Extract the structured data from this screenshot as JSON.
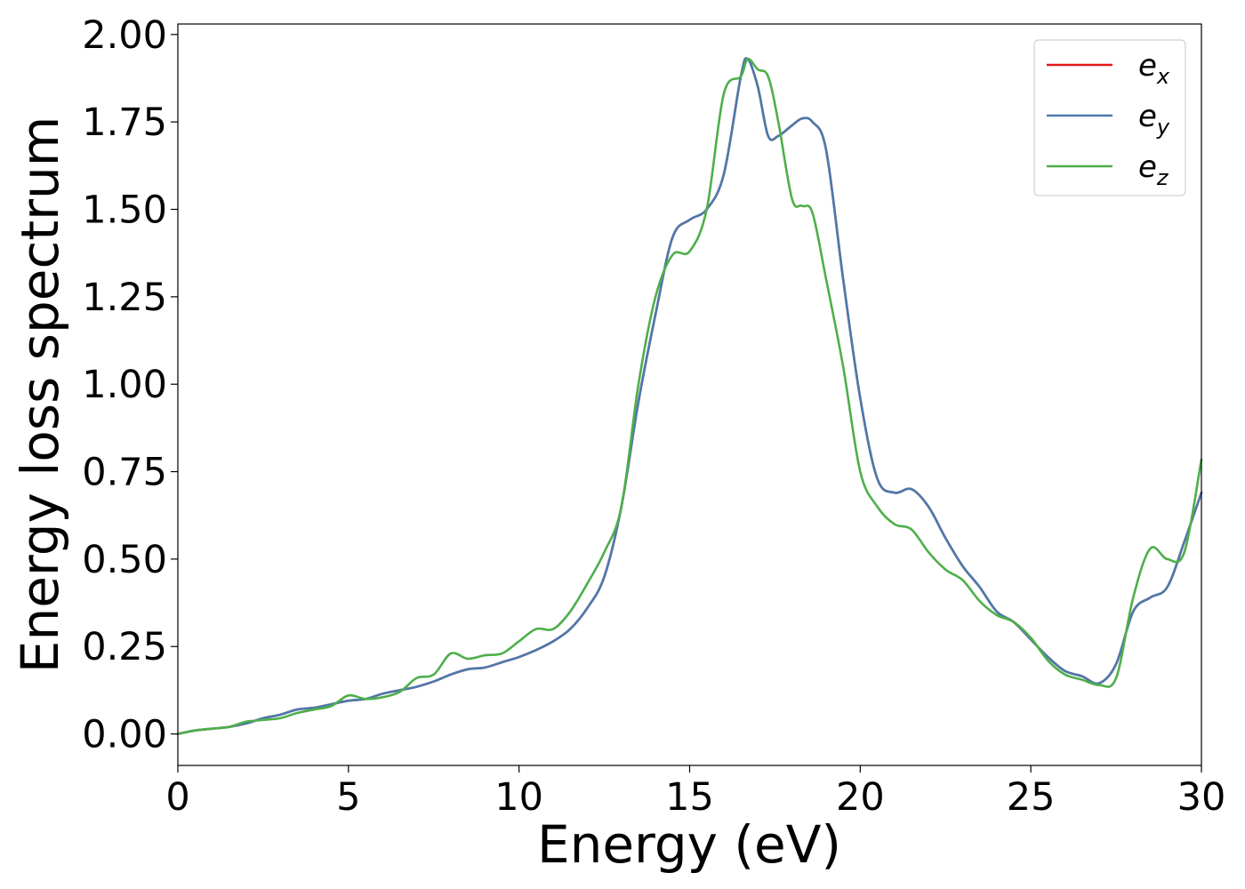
{
  "chart_data": {
    "type": "line",
    "title": "",
    "xlabel": "Energy (eV)",
    "ylabel": "Energy loss spectrum",
    "xlim": [
      0,
      30
    ],
    "ylim": [
      -0.09,
      2.03
    ],
    "xticks": [
      0,
      5,
      10,
      15,
      20,
      25,
      30
    ],
    "xtick_labels": [
      "0",
      "5",
      "10",
      "15",
      "20",
      "25",
      "30"
    ],
    "yticks": [
      0,
      0.25,
      0.5,
      0.75,
      1.0,
      1.25,
      1.5,
      1.75,
      2.0
    ],
    "ytick_labels": [
      "0.00",
      "0.25",
      "0.50",
      "0.75",
      "1.00",
      "1.25",
      "1.50",
      "1.75",
      "2.00"
    ],
    "grid": false,
    "legend_position": "top-right",
    "series": [
      {
        "name": "e_x",
        "label_base": "e",
        "label_sub": "x",
        "color": "#e41a1c",
        "x": [
          0,
          0.5,
          1,
          1.5,
          2,
          2.5,
          3,
          3.5,
          4,
          4.5,
          5,
          5.5,
          6,
          6.5,
          7,
          7.5,
          8,
          8.5,
          9,
          9.5,
          10,
          10.5,
          11,
          11.5,
          12,
          12.5,
          13,
          13.5,
          14,
          14.5,
          15,
          15.5,
          16,
          16.5,
          16.7,
          17,
          17.3,
          17.6,
          18,
          18.3,
          18.6,
          19,
          19.5,
          20,
          20.5,
          21,
          21.5,
          22,
          22.5,
          23,
          23.5,
          24,
          24.5,
          25,
          25.5,
          26,
          26.5,
          27,
          27.5,
          28,
          28.5,
          29,
          29.5,
          30
        ],
        "y": [
          0,
          0.01,
          0.015,
          0.02,
          0.03,
          0.045,
          0.055,
          0.07,
          0.075,
          0.085,
          0.095,
          0.1,
          0.115,
          0.125,
          0.135,
          0.15,
          0.17,
          0.185,
          0.19,
          0.205,
          0.22,
          0.24,
          0.265,
          0.3,
          0.36,
          0.45,
          0.65,
          0.95,
          1.2,
          1.42,
          1.47,
          1.5,
          1.6,
          1.88,
          1.93,
          1.85,
          1.71,
          1.71,
          1.74,
          1.76,
          1.75,
          1.67,
          1.3,
          0.96,
          0.73,
          0.69,
          0.7,
          0.65,
          0.56,
          0.48,
          0.42,
          0.35,
          0.32,
          0.27,
          0.22,
          0.18,
          0.165,
          0.145,
          0.2,
          0.35,
          0.39,
          0.42,
          0.55,
          0.69
        ]
      },
      {
        "name": "e_y",
        "label_base": "e",
        "label_sub": "y",
        "color": "#4a7aad",
        "x": [
          0,
          0.5,
          1,
          1.5,
          2,
          2.5,
          3,
          3.5,
          4,
          4.5,
          5,
          5.5,
          6,
          6.5,
          7,
          7.5,
          8,
          8.5,
          9,
          9.5,
          10,
          10.5,
          11,
          11.5,
          12,
          12.5,
          13,
          13.5,
          14,
          14.5,
          15,
          15.5,
          16,
          16.5,
          16.7,
          17,
          17.3,
          17.6,
          18,
          18.3,
          18.6,
          19,
          19.5,
          20,
          20.5,
          21,
          21.5,
          22,
          22.5,
          23,
          23.5,
          24,
          24.5,
          25,
          25.5,
          26,
          26.5,
          27,
          27.5,
          28,
          28.5,
          29,
          29.5,
          30
        ],
        "y": [
          0,
          0.01,
          0.015,
          0.02,
          0.03,
          0.045,
          0.055,
          0.07,
          0.075,
          0.085,
          0.095,
          0.1,
          0.115,
          0.125,
          0.135,
          0.15,
          0.17,
          0.185,
          0.19,
          0.205,
          0.22,
          0.24,
          0.265,
          0.3,
          0.36,
          0.45,
          0.65,
          0.95,
          1.2,
          1.42,
          1.47,
          1.5,
          1.6,
          1.88,
          1.93,
          1.85,
          1.71,
          1.71,
          1.74,
          1.76,
          1.75,
          1.67,
          1.3,
          0.96,
          0.73,
          0.69,
          0.7,
          0.65,
          0.56,
          0.48,
          0.42,
          0.35,
          0.32,
          0.27,
          0.22,
          0.18,
          0.165,
          0.145,
          0.2,
          0.35,
          0.39,
          0.42,
          0.55,
          0.69
        ]
      },
      {
        "name": "e_z",
        "label_base": "e",
        "label_sub": "z",
        "color": "#4daf4a",
        "x": [
          0,
          0.5,
          1,
          1.5,
          2,
          2.5,
          3,
          3.5,
          4,
          4.5,
          5,
          5.5,
          6,
          6.5,
          7,
          7.5,
          8,
          8.5,
          9,
          9.5,
          10,
          10.5,
          11,
          11.5,
          12,
          12.5,
          13,
          13.5,
          14,
          14.5,
          15,
          15.5,
          16,
          16.5,
          16.7,
          17,
          17.3,
          17.6,
          18,
          18.3,
          18.6,
          19,
          19.5,
          20,
          20.5,
          21,
          21.5,
          22,
          22.5,
          23,
          23.5,
          24,
          24.5,
          25,
          25.5,
          26,
          26.5,
          27,
          27.5,
          28,
          28.5,
          29,
          29.5,
          30
        ],
        "y": [
          0,
          0.01,
          0.015,
          0.02,
          0.035,
          0.04,
          0.045,
          0.06,
          0.07,
          0.08,
          0.11,
          0.1,
          0.105,
          0.12,
          0.16,
          0.17,
          0.23,
          0.215,
          0.225,
          0.23,
          0.265,
          0.3,
          0.3,
          0.35,
          0.43,
          0.52,
          0.65,
          1.0,
          1.25,
          1.37,
          1.38,
          1.5,
          1.83,
          1.88,
          1.93,
          1.9,
          1.88,
          1.75,
          1.53,
          1.51,
          1.49,
          1.3,
          1.05,
          0.75,
          0.65,
          0.6,
          0.585,
          0.52,
          0.47,
          0.44,
          0.38,
          0.34,
          0.32,
          0.275,
          0.21,
          0.17,
          0.155,
          0.14,
          0.16,
          0.39,
          0.53,
          0.5,
          0.52,
          0.785
        ]
      }
    ]
  }
}
